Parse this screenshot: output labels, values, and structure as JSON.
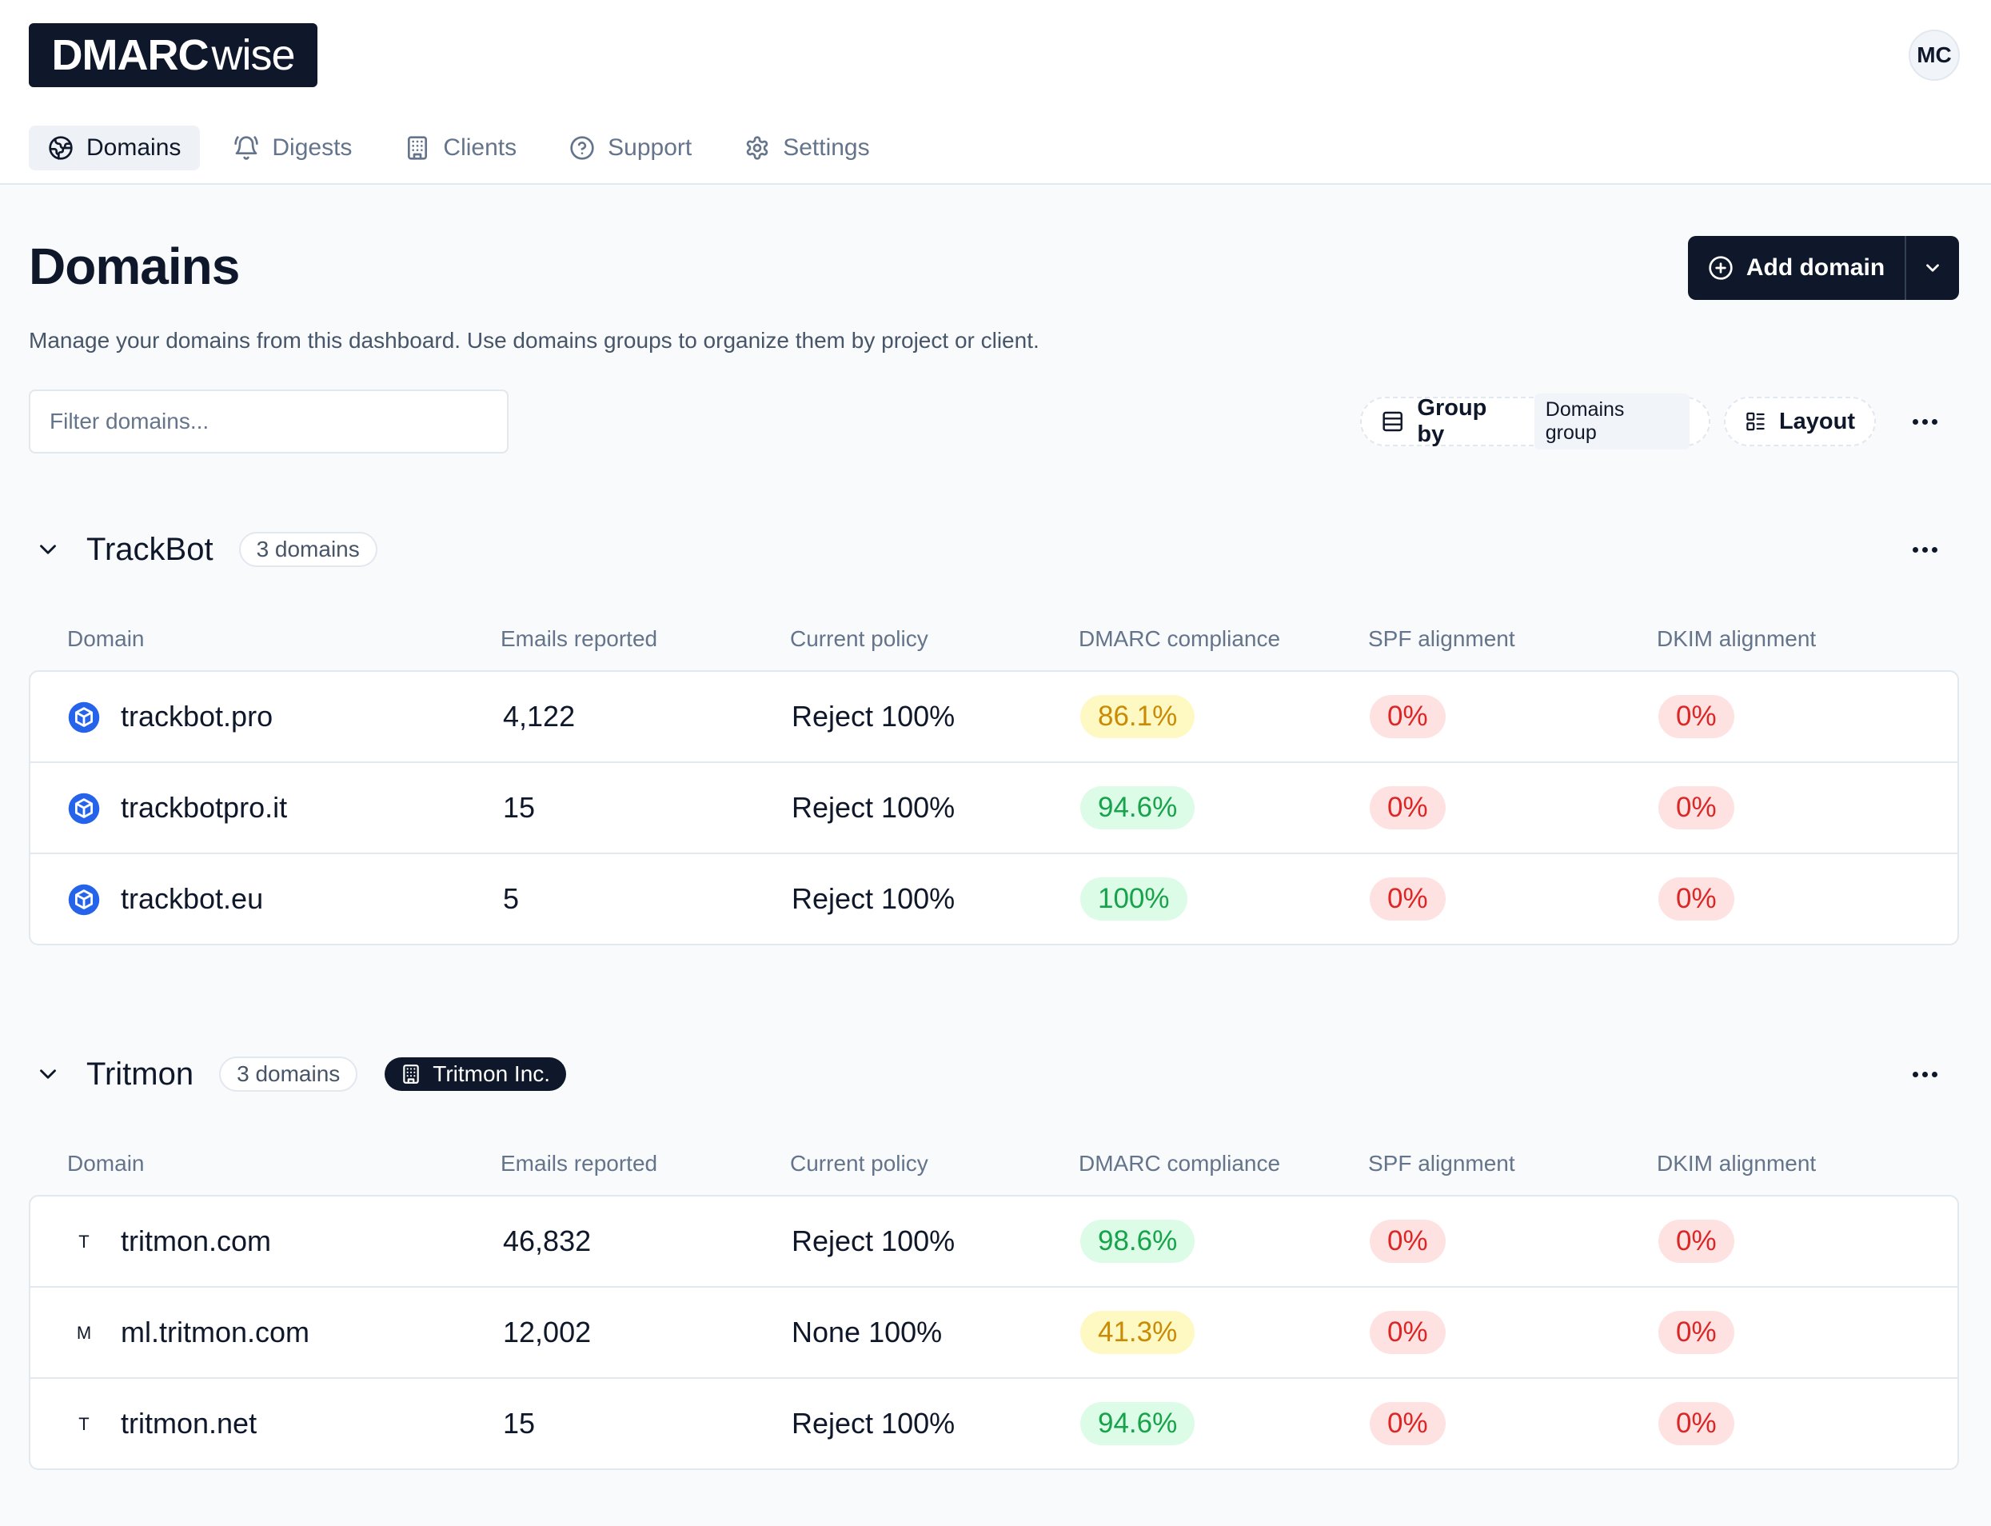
{
  "brand": {
    "bold": "DMARC",
    "light": "wise"
  },
  "user": {
    "initials": "MC"
  },
  "nav": [
    {
      "label": "Domains",
      "icon": "globe-icon",
      "active": true
    },
    {
      "label": "Digests",
      "icon": "bell-icon",
      "active": false
    },
    {
      "label": "Clients",
      "icon": "building-icon",
      "active": false
    },
    {
      "label": "Support",
      "icon": "help-circle-icon",
      "active": false
    },
    {
      "label": "Settings",
      "icon": "gear-icon",
      "active": false
    }
  ],
  "page": {
    "title": "Domains",
    "description": "Manage your domains from this dashboard. Use domains groups to organize them by project or client.",
    "add_label": "Add domain",
    "filter_placeholder": "Filter domains..."
  },
  "toolbar": {
    "group_by_label": "Group by",
    "group_by_value": "Domains group",
    "layout_label": "Layout"
  },
  "columns": [
    "Domain",
    "Emails reported",
    "Current policy",
    "DMARC compliance",
    "SPF alignment",
    "DKIM alignment"
  ],
  "colors": {
    "yellow": "#ca8a04",
    "green": "#16a34a",
    "red": "#dc2626",
    "brand_blue": "#2563eb"
  },
  "groups": [
    {
      "name": "TrackBot",
      "count": "3 domains",
      "client": "",
      "rows": [
        {
          "domain": "trackbot.pro",
          "icon": "cube-icon",
          "emails": "4,122",
          "policy": "Reject 100%",
          "dmarc": "86.1%",
          "dmarc_level": "yellow",
          "spf": "0%",
          "dkim": "0%"
        },
        {
          "domain": "trackbotpro.it",
          "icon": "cube-icon",
          "emails": "15",
          "policy": "Reject 100%",
          "dmarc": "94.6%",
          "dmarc_level": "green",
          "spf": "0%",
          "dkim": "0%"
        },
        {
          "domain": "trackbot.eu",
          "icon": "cube-icon",
          "emails": "5",
          "policy": "Reject 100%",
          "dmarc": "100%",
          "dmarc_level": "green",
          "spf": "0%",
          "dkim": "0%"
        }
      ]
    },
    {
      "name": "Tritmon",
      "count": "3 domains",
      "client": "Tritmon Inc.",
      "rows": [
        {
          "domain": "tritmon.com",
          "letter": "T",
          "emails": "46,832",
          "policy": "Reject 100%",
          "dmarc": "98.6%",
          "dmarc_level": "green",
          "spf": "0%",
          "dkim": "0%"
        },
        {
          "domain": "ml.tritmon.com",
          "letter": "M",
          "emails": "12,002",
          "policy": "None 100%",
          "dmarc": "41.3%",
          "dmarc_level": "yellow",
          "spf": "0%",
          "dkim": "0%"
        },
        {
          "domain": "tritmon.net",
          "letter": "T",
          "emails": "15",
          "policy": "Reject 100%",
          "dmarc": "94.6%",
          "dmarc_level": "green",
          "spf": "0%",
          "dkim": "0%"
        }
      ]
    }
  ]
}
